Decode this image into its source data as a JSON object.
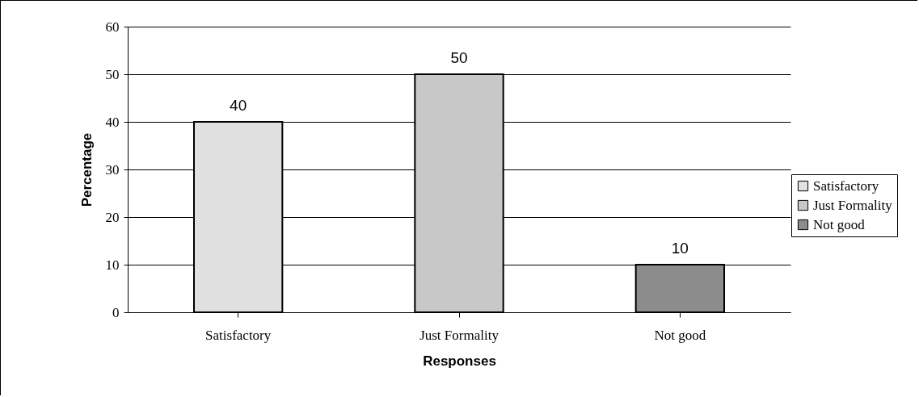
{
  "chart_data": {
    "type": "bar",
    "categories": [
      "Satisfactory",
      "Just Formality",
      "Not good"
    ],
    "series": [
      {
        "name": "Satisfactory",
        "color": "#e0e0e0",
        "values": [
          40,
          null,
          null
        ]
      },
      {
        "name": "Just Formality",
        "color": "#c8c8c8",
        "values": [
          null,
          50,
          null
        ]
      },
      {
        "name": "Not good",
        "color": "#8c8c8c",
        "values": [
          null,
          null,
          10
        ]
      }
    ],
    "xlabel": "Responses",
    "ylabel": "Percentage",
    "ylim": [
      0,
      60
    ],
    "yticks": [
      0,
      10,
      20,
      30,
      40,
      50,
      60
    ],
    "grid": "y",
    "legend": "right",
    "data_labels": true
  }
}
